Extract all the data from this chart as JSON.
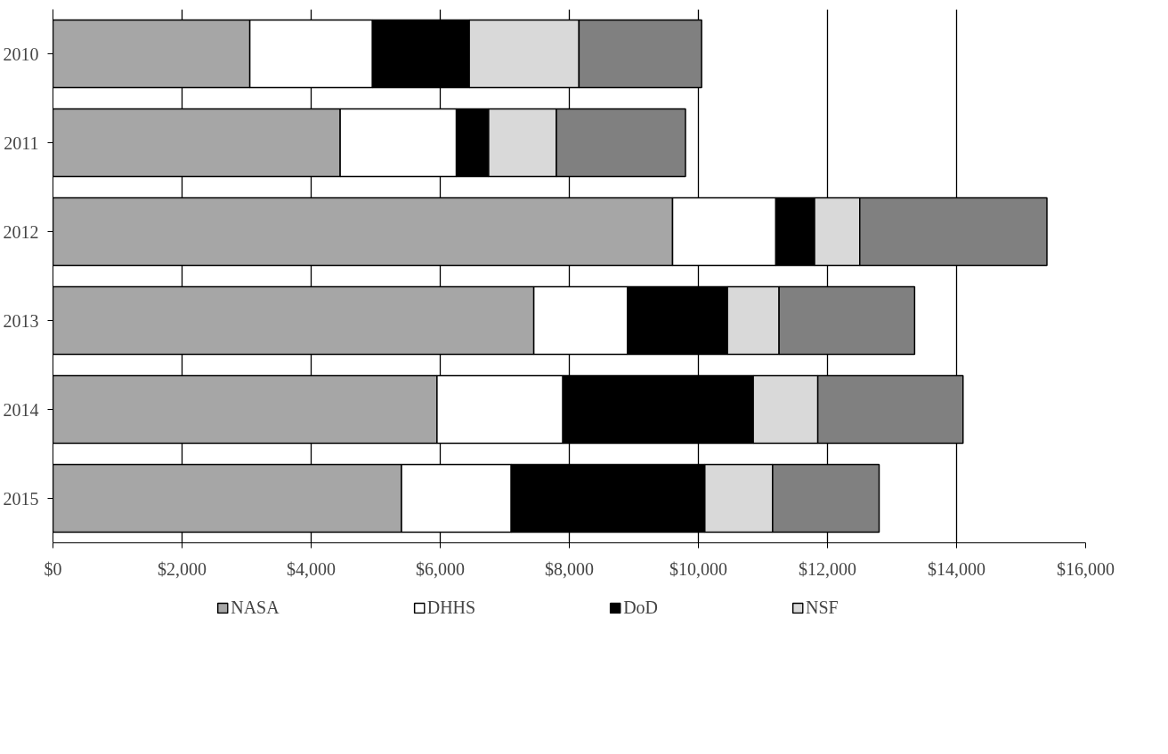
{
  "chart_data": {
    "type": "bar",
    "orientation": "horizontal",
    "stacked": true,
    "categories": [
      "2010",
      "2011",
      "2012",
      "2013",
      "2014",
      "2015"
    ],
    "series": [
      {
        "name": "NASA",
        "color": "#a6a6a6",
        "values": [
          3050,
          4450,
          9600,
          7450,
          5950,
          5400
        ]
      },
      {
        "name": "DHHS",
        "color": "#ffffff",
        "values": [
          1900,
          1800,
          1600,
          1450,
          1950,
          1700
        ]
      },
      {
        "name": "DoD",
        "color": "#000000",
        "values": [
          1500,
          500,
          600,
          1550,
          2950,
          3000
        ]
      },
      {
        "name": "NSF",
        "color": "#d9d9d9",
        "values": [
          1700,
          1050,
          700,
          800,
          1000,
          1050
        ]
      },
      {
        "color": "#808080",
        "values": [
          1900,
          2000,
          2900,
          2100,
          2250,
          1650
        ]
      }
    ],
    "xlim": [
      0,
      16000
    ],
    "xticks": [
      {
        "value": 0,
        "label": "$0"
      },
      {
        "value": 2000,
        "label": "$2,000"
      },
      {
        "value": 4000,
        "label": "$4,000"
      },
      {
        "value": 6000,
        "label": "$6,000"
      },
      {
        "value": 8000,
        "label": "$8,000"
      },
      {
        "value": 10000,
        "label": "$10,000"
      },
      {
        "value": 12000,
        "label": "$12,000"
      },
      {
        "value": 14000,
        "label": "$14,000"
      },
      {
        "value": 16000,
        "label": "$16,000"
      }
    ],
    "grid": "x",
    "legend": "bottom"
  }
}
